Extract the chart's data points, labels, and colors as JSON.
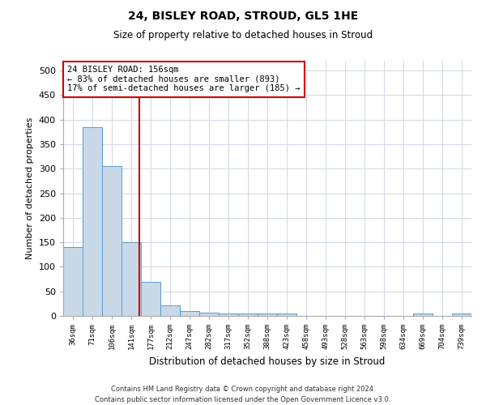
{
  "title_line1": "24, BISLEY ROAD, STROUD, GL5 1HE",
  "title_line2": "Size of property relative to detached houses in Stroud",
  "xlabel": "Distribution of detached houses by size in Stroud",
  "ylabel": "Number of detached properties",
  "bin_labels": [
    "36sqm",
    "71sqm",
    "106sqm",
    "141sqm",
    "177sqm",
    "212sqm",
    "247sqm",
    "282sqm",
    "317sqm",
    "352sqm",
    "388sqm",
    "423sqm",
    "458sqm",
    "493sqm",
    "528sqm",
    "563sqm",
    "598sqm",
    "634sqm",
    "669sqm",
    "704sqm",
    "739sqm"
  ],
  "bar_heights": [
    140,
    385,
    305,
    150,
    70,
    22,
    10,
    7,
    5,
    5,
    5,
    5,
    0,
    0,
    0,
    0,
    0,
    0,
    5,
    0,
    5
  ],
  "bar_color": "#c9d9e8",
  "bar_edge_color": "#5b9bd5",
  "vline_x_index": 3.43,
  "annotation_text_line1": "24 BISLEY ROAD: 156sqm",
  "annotation_text_line2": "← 83% of detached houses are smaller (893)",
  "annotation_text_line3": "17% of semi-detached houses are larger (185) →",
  "annotation_box_color": "#ffffff",
  "annotation_box_edge": "#cc0000",
  "vline_color": "#cc0000",
  "yticks": [
    0,
    50,
    100,
    150,
    200,
    250,
    300,
    350,
    400,
    450,
    500
  ],
  "ylim": [
    0,
    520
  ],
  "footer_line1": "Contains HM Land Registry data © Crown copyright and database right 2024.",
  "footer_line2": "Contains public sector information licensed under the Open Government Licence v3.0.",
  "background_color": "#ffffff",
  "grid_color": "#d0d8e8"
}
